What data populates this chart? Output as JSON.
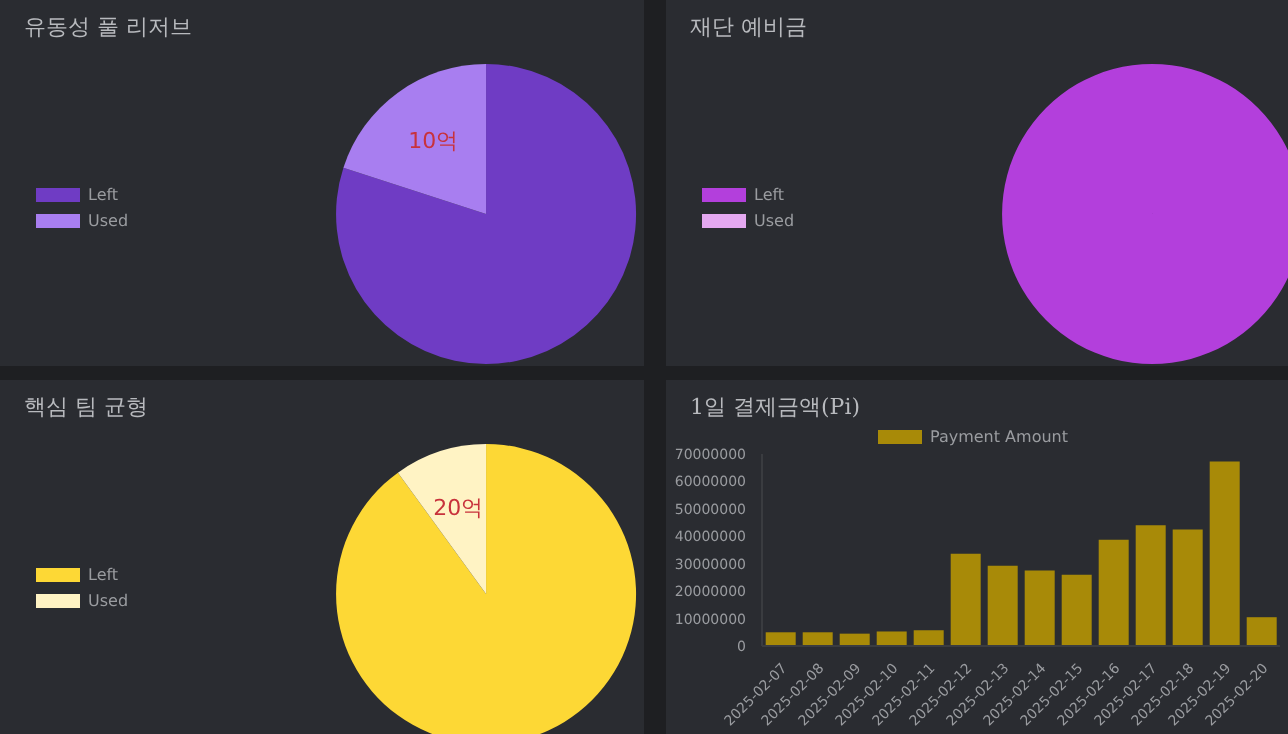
{
  "chart_data": [
    {
      "type": "pie",
      "title": "유동성 풀 리저브",
      "categories": [
        "Left",
        "Used"
      ],
      "values": [
        40,
        10
      ],
      "colors": [
        "#6f3cc4",
        "#a87ef0"
      ],
      "value_labels": [
        null,
        "10억"
      ],
      "legend": "left"
    },
    {
      "type": "pie",
      "title": "재단 예비금",
      "categories": [
        "Left",
        "Used"
      ],
      "values": [
        100,
        0
      ],
      "colors": [
        "#b33fdc",
        "#e4a8f0"
      ],
      "legend": "left"
    },
    {
      "type": "pie",
      "title": "핵심 팀 균형",
      "categories": [
        "Left",
        "Used"
      ],
      "values": [
        180,
        20
      ],
      "colors": [
        "#fdd835",
        "#fff3c4"
      ],
      "value_labels": [
        null,
        "20억"
      ],
      "legend": "left"
    },
    {
      "type": "bar",
      "title": "1일 결제금액(Pi)",
      "categories": [
        "2025-02-07",
        "2025-02-08",
        "2025-02-09",
        "2025-02-10",
        "2025-02-11",
        "2025-02-12",
        "2025-02-13",
        "2025-02-14",
        "2025-02-15",
        "2025-02-16",
        "2025-02-17",
        "2025-02-18",
        "2025-02-19",
        "2025-02-20"
      ],
      "series": [
        {
          "name": "Payment Amount",
          "color": "#a88a08",
          "values": [
            5000000,
            5000000,
            4500000,
            5300000,
            5700000,
            33600000,
            29300000,
            27500000,
            26000000,
            38700000,
            44000000,
            42500000,
            67300000,
            10500000
          ]
        }
      ],
      "ylim": [
        0,
        70000000
      ],
      "yticks": [
        0,
        10000000,
        20000000,
        30000000,
        40000000,
        50000000,
        60000000,
        70000000
      ],
      "legend": "top"
    }
  ]
}
